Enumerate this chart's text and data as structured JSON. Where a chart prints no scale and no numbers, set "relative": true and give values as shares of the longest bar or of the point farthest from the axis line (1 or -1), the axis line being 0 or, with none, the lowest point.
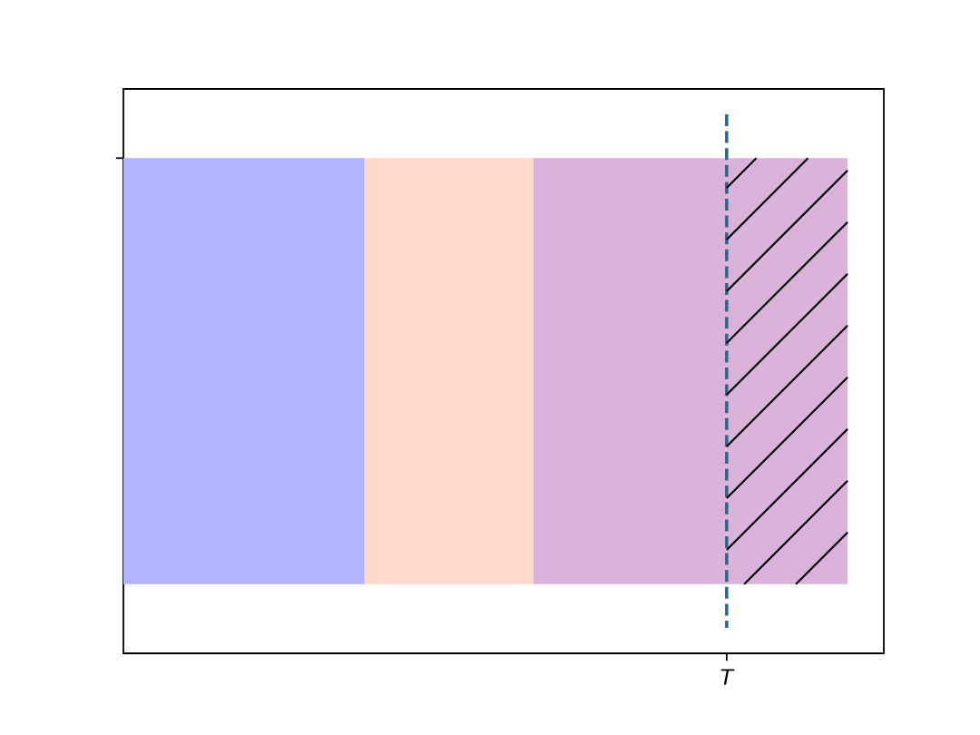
{
  "chart_data": {
    "type": "bar",
    "orientation": "horizontal",
    "stacked": true,
    "relative": true,
    "categories": [
      null
    ],
    "series": [
      {
        "color": "#b3b3ff",
        "values": [
          0.333
        ]
      },
      {
        "color": "#ffd9ca",
        "values": [
          0.233
        ]
      },
      {
        "color": "#d9b3d9",
        "values": [
          0.267
        ]
      },
      {
        "color": "#d9b3d9",
        "values": [
          0.167
        ]
      }
    ],
    "ref_lines": [
      {
        "axis": "x",
        "value": 0.833,
        "label": "T",
        "color": "#236a8e",
        "line_style": "dashed"
      }
    ]
  }
}
